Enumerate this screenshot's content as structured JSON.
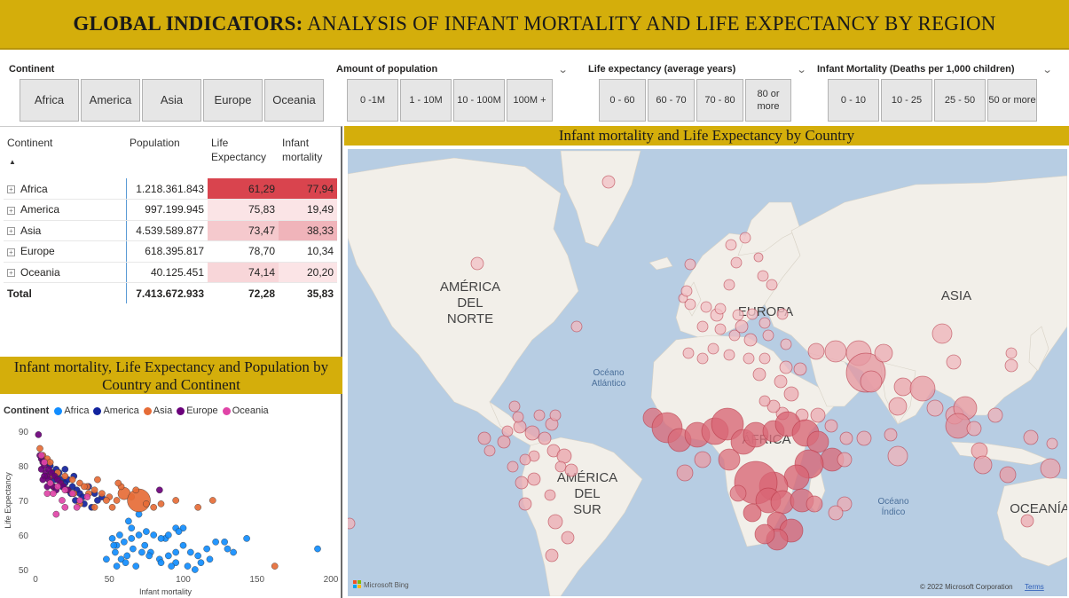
{
  "banner": {
    "title_bold": "GLOBAL INDICATORS:",
    "title_rest": "ANALYSIS OF INFANT MORTALITY AND LIFE EXPECTANCY BY REGION"
  },
  "slicers": {
    "continent": {
      "label": "Continent",
      "options": [
        "Africa",
        "America",
        "Asia",
        "Europe",
        "Oceania"
      ]
    },
    "population": {
      "label": "Amount of population",
      "options": [
        "0 -1M",
        "1 - 10M",
        "10 - 100M",
        "100M +"
      ]
    },
    "life": {
      "label": "Life expectancy (average years)",
      "options": [
        "0 - 60",
        "60 - 70",
        "70 - 80",
        "80 or more"
      ]
    },
    "infant": {
      "label": "Infant Mortality (Deaths per 1,000 children)",
      "options": [
        "0 - 10",
        "10 - 25",
        "25 - 50",
        "50 or more"
      ]
    }
  },
  "matrix": {
    "headers": {
      "continent": "Continent",
      "population": "Population",
      "life": "Life Expectancy",
      "infant": "Infant mortality"
    },
    "rows": [
      {
        "continent": "Africa",
        "population": "1.218.361.843",
        "life": "61,29",
        "infant": "77,94",
        "life_bg": "#d9444e",
        "infant_bg": "#d9444e"
      },
      {
        "continent": "America",
        "population": "997.199.945",
        "life": "75,83",
        "infant": "19,49",
        "life_bg": "#fbe4e6",
        "infant_bg": "#fbe4e6"
      },
      {
        "continent": "Asia",
        "population": "4.539.589.877",
        "life": "73,47",
        "infant": "38,33",
        "life_bg": "#f5c9cd",
        "infant_bg": "#f0b4ba"
      },
      {
        "continent": "Europe",
        "population": "618.395.817",
        "life": "78,70",
        "infant": "10,34",
        "life_bg": "#ffffff",
        "infant_bg": "#ffffff"
      },
      {
        "continent": "Oceania",
        "population": "40.125.451",
        "life": "74,14",
        "infant": "20,20",
        "life_bg": "#f8d6d9",
        "infant_bg": "#fbe4e6"
      }
    ],
    "total": {
      "label": "Total",
      "population": "7.413.672.933",
      "life": "72,28",
      "infant": "35,83"
    }
  },
  "scatter": {
    "title": "Infant mortality, Life Expectancy and Population by Country and Continent",
    "legend_title": "Continent",
    "legend": [
      {
        "name": "Africa",
        "color": "#118dff"
      },
      {
        "name": "America",
        "color": "#12239e"
      },
      {
        "name": "Asia",
        "color": "#e66c37"
      },
      {
        "name": "Europe",
        "color": "#6b007b"
      },
      {
        "name": "Oceania",
        "color": "#e044a7"
      }
    ]
  },
  "chart_data": {
    "type": "scatter",
    "title": "Infant mortality, Life Expectancy and Population by Country and Continent",
    "xlabel": "Infant mortality",
    "ylabel": "Life Expectancy",
    "xlim": [
      0,
      200
    ],
    "ylim": [
      50,
      90
    ],
    "xticks": [
      0,
      50,
      100,
      150,
      200
    ],
    "yticks": [
      50,
      60,
      70,
      80,
      90
    ],
    "series": [
      {
        "name": "Africa",
        "points": [
          [
            88,
            59
          ],
          [
            95,
            62
          ],
          [
            100,
            62
          ],
          [
            97,
            61
          ],
          [
            90,
            60
          ],
          [
            85,
            59
          ],
          [
            80,
            60
          ],
          [
            75,
            61
          ],
          [
            70,
            60
          ],
          [
            65,
            59
          ],
          [
            60,
            58
          ],
          [
            57,
            60
          ],
          [
            55,
            57
          ],
          [
            52,
            59
          ],
          [
            54,
            55
          ],
          [
            58,
            53
          ],
          [
            66,
            56
          ],
          [
            72,
            55
          ],
          [
            62,
            54
          ],
          [
            78,
            55
          ],
          [
            90,
            54
          ],
          [
            95,
            55
          ],
          [
            100,
            57
          ],
          [
            105,
            55
          ],
          [
            110,
            54
          ],
          [
            116,
            56
          ],
          [
            122,
            58
          ],
          [
            128,
            58
          ],
          [
            134,
            55
          ],
          [
            118,
            53
          ],
          [
            112,
            52
          ],
          [
            103,
            51
          ],
          [
            95,
            52
          ],
          [
            84,
            53
          ],
          [
            77,
            54
          ],
          [
            61,
            52
          ],
          [
            55,
            51
          ],
          [
            68,
            51
          ],
          [
            48,
            53
          ],
          [
            53,
            57
          ],
          [
            191,
            56
          ],
          [
            143,
            59
          ],
          [
            130,
            56
          ],
          [
            108,
            50
          ],
          [
            92,
            51
          ],
          [
            85,
            52
          ],
          [
            74,
            57
          ],
          [
            65,
            62
          ],
          [
            70,
            66
          ],
          [
            63,
            64
          ]
        ]
      },
      {
        "name": "America",
        "points": [
          [
            5,
            82
          ],
          [
            8,
            81
          ],
          [
            12,
            78
          ],
          [
            15,
            77
          ],
          [
            18,
            76
          ],
          [
            20,
            75
          ],
          [
            22,
            76
          ],
          [
            25,
            74
          ],
          [
            28,
            73
          ],
          [
            30,
            72
          ],
          [
            32,
            71
          ],
          [
            14,
            79
          ],
          [
            10,
            80
          ],
          [
            18,
            74
          ],
          [
            24,
            72
          ],
          [
            27,
            70
          ],
          [
            33,
            69
          ],
          [
            36,
            74
          ],
          [
            40,
            72
          ],
          [
            42,
            70
          ],
          [
            45,
            71
          ],
          [
            16,
            78
          ],
          [
            20,
            79
          ],
          [
            26,
            77
          ],
          [
            13,
            76
          ],
          [
            38,
            68
          ]
        ]
      },
      {
        "name": "Asia",
        "points": [
          [
            3,
            85
          ],
          [
            5,
            83
          ],
          [
            8,
            82
          ],
          [
            10,
            81
          ],
          [
            15,
            78
          ],
          [
            20,
            77
          ],
          [
            25,
            76
          ],
          [
            30,
            75
          ],
          [
            35,
            74
          ],
          [
            40,
            73
          ],
          [
            45,
            72
          ],
          [
            50,
            71
          ],
          [
            55,
            70
          ],
          [
            60,
            72
          ],
          [
            65,
            71
          ],
          [
            70,
            70
          ],
          [
            75,
            69
          ],
          [
            80,
            68
          ],
          [
            85,
            69
          ],
          [
            95,
            70
          ],
          [
            110,
            68
          ],
          [
            120,
            70
          ],
          [
            162,
            51
          ],
          [
            58,
            74
          ],
          [
            40,
            68
          ],
          [
            26,
            72
          ],
          [
            48,
            70
          ],
          [
            33,
            74
          ],
          [
            12,
            74
          ],
          [
            68,
            73
          ],
          [
            56,
            75
          ],
          [
            22,
            73
          ],
          [
            17,
            75
          ],
          [
            10,
            77
          ],
          [
            30,
            69
          ],
          [
            36,
            72
          ],
          [
            42,
            76
          ],
          [
            52,
            68
          ]
        ]
      },
      {
        "name": "Europe",
        "points": [
          [
            2,
            89
          ],
          [
            3,
            83
          ],
          [
            4,
            82
          ],
          [
            5,
            81
          ],
          [
            6,
            80
          ],
          [
            4,
            79
          ],
          [
            7,
            78
          ],
          [
            8,
            77
          ],
          [
            9,
            76
          ],
          [
            10,
            75
          ],
          [
            12,
            74
          ],
          [
            14,
            73
          ],
          [
            6,
            77
          ],
          [
            9,
            79
          ],
          [
            11,
            78
          ],
          [
            13,
            77
          ],
          [
            15,
            76
          ],
          [
            17,
            75
          ],
          [
            19,
            74
          ],
          [
            22,
            73
          ],
          [
            5,
            76
          ],
          [
            8,
            74
          ],
          [
            84,
            73
          ]
        ]
      },
      {
        "name": "Oceania",
        "points": [
          [
            4,
            83
          ],
          [
            6,
            81
          ],
          [
            10,
            75
          ],
          [
            15,
            74
          ],
          [
            20,
            73
          ],
          [
            25,
            72
          ],
          [
            30,
            70
          ],
          [
            18,
            70
          ],
          [
            12,
            72
          ],
          [
            8,
            72
          ],
          [
            35,
            71
          ],
          [
            28,
            68
          ],
          [
            14,
            66
          ],
          [
            20,
            68
          ]
        ]
      }
    ]
  },
  "map": {
    "title": "Infant mortality and Life Expectancy by Country",
    "labels": {
      "north_america": [
        "AMÉRICA",
        "DEL",
        "NORTE"
      ],
      "south_america": [
        "AMÉRICA",
        "DEL",
        "SUR"
      ],
      "europe": "EUROPA",
      "asia": "ASIA",
      "africa": "ÁFRICA",
      "oceania": "OCEANÍA",
      "atlantic": [
        "Océano",
        "Atlántico"
      ],
      "indian": [
        "Océano",
        "Índico"
      ]
    },
    "bing_logo": "Microsoft Bing",
    "copyright": "© 2022 Microsoft Corporation",
    "terms": "Terms",
    "colors": {
      "water": "#b7cde3",
      "land": "#f2efe9",
      "bubble_fill": "#d0495a",
      "bubble_stroke": "#b4303f"
    }
  }
}
